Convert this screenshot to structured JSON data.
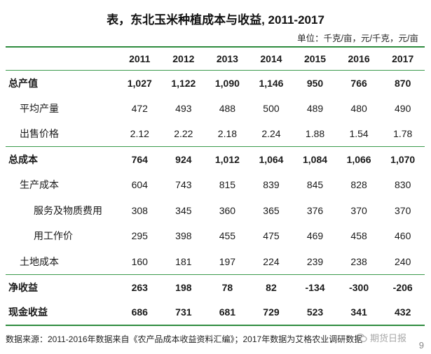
{
  "title": "表，东北玉米种植成本与收益, 2011-2017",
  "unit": "单位：千克/亩，元/千克，元/亩",
  "columns": [
    "2011",
    "2012",
    "2013",
    "2014",
    "2015",
    "2016",
    "2017"
  ],
  "rows": [
    {
      "label": "总产值",
      "values": [
        "1,027",
        "1,122",
        "1,090",
        "1,146",
        "950",
        "766",
        "870"
      ]
    },
    {
      "label": "平均产量",
      "values": [
        "472",
        "493",
        "488",
        "500",
        "489",
        "480",
        "490"
      ]
    },
    {
      "label": "出售价格",
      "values": [
        "2.12",
        "2.22",
        "2.18",
        "2.24",
        "1.88",
        "1.54",
        "1.78"
      ]
    },
    {
      "label": "总成本",
      "values": [
        "764",
        "924",
        "1,012",
        "1,064",
        "1,084",
        "1,066",
        "1,070"
      ]
    },
    {
      "label": "生产成本",
      "values": [
        "604",
        "743",
        "815",
        "839",
        "845",
        "828",
        "830"
      ]
    },
    {
      "label": "服务及物质费用",
      "values": [
        "308",
        "345",
        "360",
        "365",
        "376",
        "370",
        "370"
      ]
    },
    {
      "label": "用工作价",
      "values": [
        "295",
        "398",
        "455",
        "475",
        "469",
        "458",
        "460"
      ]
    },
    {
      "label": "土地成本",
      "values": [
        "160",
        "181",
        "197",
        "224",
        "239",
        "238",
        "240"
      ]
    },
    {
      "label": "净收益",
      "values": [
        "263",
        "198",
        "78",
        "82",
        "-134",
        "-300",
        "-206"
      ]
    },
    {
      "label": "现金收益",
      "values": [
        "686",
        "731",
        "681",
        "729",
        "523",
        "341",
        "432"
      ]
    }
  ],
  "source": "数据来源：2011-2016年数据来自《农产品成本收益资料汇编》；2017年数据为艾格农业调研数据",
  "watermark": "期货日报",
  "page_number": "9"
}
